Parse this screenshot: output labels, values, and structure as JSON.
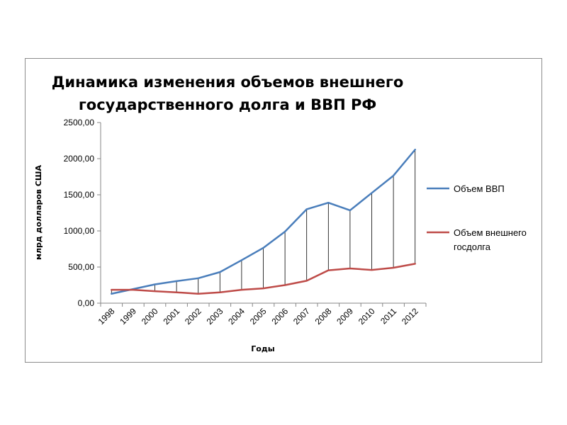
{
  "chart_data": {
    "type": "line",
    "title": [
      "Динамика изменения объемов внешнего",
      "государственного долга и ВВП РФ"
    ],
    "xlabel": "Годы",
    "ylabel": "млрд долларов США",
    "categories": [
      "1998",
      "1999",
      "2000",
      "2001",
      "2002",
      "2003",
      "2004",
      "2005",
      "2006",
      "2007",
      "2008",
      "2009",
      "2010",
      "2011",
      "2012"
    ],
    "y_tick_labels": [
      "0,00",
      "500,00",
      "1000,00",
      "1500,00",
      "2000,00",
      "2500,00"
    ],
    "ylim": [
      0,
      2500
    ],
    "grid": false,
    "drop_lines": true,
    "legend_position": "right",
    "series": [
      {
        "name": "Объем ВВП",
        "color": "#4a7ebb",
        "values": [
          130,
          195,
          260,
          305,
          345,
          430,
          595,
          765,
          990,
          1300,
          1390,
          1285,
          1525,
          1765,
          2125
        ]
      },
      {
        "name": "Объем внешнего госдолга",
        "legend_lines": [
          "Объем внешнего",
          "госдолга"
        ],
        "color": "#be4b48",
        "values": [
          185,
          185,
          165,
          150,
          130,
          150,
          185,
          205,
          250,
          310,
          455,
          480,
          460,
          490,
          545
        ]
      }
    ]
  }
}
